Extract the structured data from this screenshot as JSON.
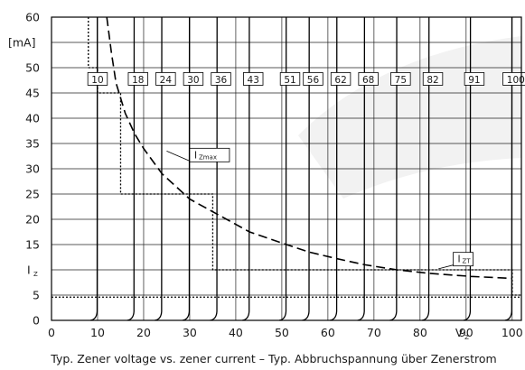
{
  "chart_data": {
    "type": "line",
    "caption": "Typ. Zener voltage vs. zener current  –  Typ. Abbruchspannung über Zenerstrom",
    "ylabel_unit": "[mA]",
    "ylabel_symbol": "I",
    "ylabel_subscript": "Z",
    "xlabel_symbol": "V",
    "xlabel_subscript": "Z",
    "xlim": [
      0,
      102
    ],
    "ylim": [
      0,
      60
    ],
    "grid": true,
    "x_ticks": [
      0,
      10,
      20,
      30,
      40,
      50,
      60,
      70,
      80,
      90,
      100
    ],
    "y_ticks": [
      0,
      5,
      10,
      15,
      20,
      25,
      30,
      35,
      40,
      45,
      50,
      55,
      60
    ],
    "diode_voltages": [
      "10",
      "18",
      "24",
      "30",
      "36",
      "43",
      "51",
      "56",
      "62",
      "68",
      "75",
      "82",
      "91",
      "100"
    ],
    "breakdown_curves_x": [
      10,
      18,
      24,
      30,
      36,
      43,
      51,
      56,
      62,
      68,
      75,
      82,
      91,
      100
    ],
    "annotations": [
      {
        "symbol": "I",
        "subscript": "Zmax",
        "series": "izmax"
      },
      {
        "symbol": "I",
        "subscript": "ZT",
        "series": "izt"
      }
    ],
    "series": [
      {
        "id": "izmax",
        "style": "dashed",
        "x": [
          12,
          13,
          14,
          16,
          18,
          20,
          24,
          30,
          36,
          43,
          51,
          56,
          62,
          68,
          75,
          82,
          91,
          100
        ],
        "y": [
          60,
          53,
          47,
          41,
          37,
          34,
          29,
          24,
          21,
          17.5,
          15,
          13.5,
          12.2,
          11,
          10,
          9.3,
          8.7,
          8.3
        ]
      },
      {
        "id": "izt",
        "style": "dotted",
        "x": [
          8,
          8,
          10,
          10,
          15,
          15,
          35,
          35,
          100,
          100,
          102
        ],
        "y": [
          60,
          50,
          50,
          45,
          45,
          25,
          25,
          10,
          10,
          5,
          5
        ]
      },
      {
        "id": "low-current",
        "style": "dotted",
        "x": [
          0,
          102
        ],
        "y": [
          4.6,
          4.6
        ]
      }
    ]
  }
}
